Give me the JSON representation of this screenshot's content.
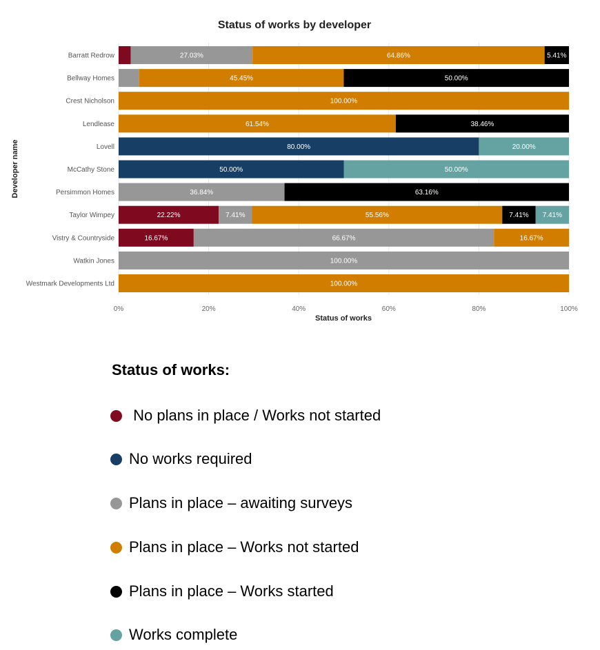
{
  "chart_data": {
    "type": "bar",
    "orientation": "horizontal",
    "stacked": true,
    "normalized": true,
    "title": "Status of works by developer",
    "xlabel": "Status of works",
    "ylabel": "Developer name",
    "xlim": [
      0,
      100
    ],
    "xticks": [
      "0%",
      "20%",
      "40%",
      "60%",
      "80%",
      "100%"
    ],
    "grid": true,
    "categories": [
      "Barratt Redrow",
      "Bellway Homes",
      "Crest Nicholson",
      "Lendlease",
      "Lovell",
      "McCathy Stone",
      "Persimmon Homes",
      "Taylor Wimpey",
      "Vistry & Countryside",
      "Watkin Jones",
      "Westmark Developments Ltd"
    ],
    "series": [
      {
        "name": "No plans in place / Works not started",
        "color": "#7f0a1f",
        "values": [
          2.7,
          0,
          0,
          0,
          0,
          0,
          0,
          22.22,
          16.67,
          0,
          0
        ]
      },
      {
        "name": "No works required",
        "color": "#173f66",
        "values": [
          0,
          0,
          0,
          0,
          80.0,
          50.0,
          0,
          0,
          0,
          0,
          0
        ]
      },
      {
        "name": "Plans in place – awaiting surveys",
        "color": "#979797",
        "values": [
          27.03,
          4.55,
          0,
          0,
          0,
          0,
          36.84,
          7.41,
          66.67,
          100.0,
          0
        ]
      },
      {
        "name": "Plans in place – Works not started",
        "color": "#d17d00",
        "values": [
          64.86,
          45.45,
          100.0,
          61.54,
          0,
          0,
          0,
          55.56,
          16.67,
          0,
          100.0
        ]
      },
      {
        "name": "Plans in place – Works started",
        "color": "#000000",
        "values": [
          5.41,
          50.0,
          0,
          38.46,
          0,
          0,
          63.16,
          7.41,
          0,
          0,
          0
        ]
      },
      {
        "name": "Works complete",
        "color": "#64a3a1",
        "values": [
          0,
          0,
          0,
          0,
          20.0,
          50.0,
          0,
          7.41,
          0,
          0,
          0
        ]
      }
    ],
    "data_labels": [
      [
        null,
        "27.03%",
        "64.86%",
        "5.41%"
      ],
      [
        null,
        "45.45%",
        "50.00%"
      ],
      [
        "100.00%"
      ],
      [
        "61.54%",
        "38.46%"
      ],
      [
        "80.00%",
        "20.00%"
      ],
      [
        "50.00%",
        "50.00%"
      ],
      [
        "36.84%",
        "63.16%"
      ],
      [
        "22.22%",
        "7.41%",
        "55.56%",
        "7.41%",
        "7.41%"
      ],
      [
        "16.67%",
        "66.67%",
        "16.67%"
      ],
      [
        "100.00%"
      ],
      [
        "100.00%"
      ]
    ]
  },
  "legend": {
    "title": "Status of works:",
    "items": [
      {
        "label": " No plans in place / Works not started",
        "color": "#7f0a1f"
      },
      {
        "label": "No works required",
        "color": "#173f66"
      },
      {
        "label": "Plans in place – awaiting surveys",
        "color": "#979797"
      },
      {
        "label": "Plans in place – Works not started",
        "color": "#d17d00"
      },
      {
        "label": "Plans in place – Works started",
        "color": "#000000"
      },
      {
        "label": "Works complete",
        "color": "#64a3a1"
      }
    ]
  }
}
